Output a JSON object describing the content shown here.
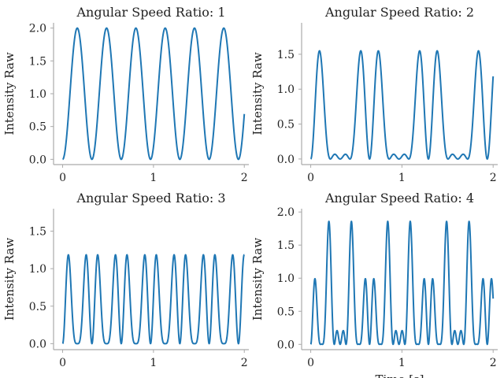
{
  "chart_data": [
    {
      "type": "line",
      "title": "Angular Speed Ratio: 1",
      "ylabel": "Intensity Raw",
      "xlabel": "",
      "ratio": 1,
      "xlim": [
        -0.1,
        2.05
      ],
      "ylim": [
        -0.08,
        2.08
      ],
      "xticks": [
        0,
        1,
        2
      ],
      "yticks": [
        0.0,
        0.5,
        1.0,
        1.5,
        2.0
      ],
      "ytick_labels": [
        "0.0",
        "0.5",
        "1.0",
        "1.5",
        "2.0"
      ],
      "series": [
        {
          "color": "#1f77b4"
        }
      ]
    },
    {
      "type": "line",
      "title": "Angular Speed Ratio: 2",
      "ylabel": "Intensity Raw",
      "xlabel": "",
      "ratio": 2,
      "xlim": [
        -0.1,
        2.05
      ],
      "ylim": [
        -0.08,
        1.95
      ],
      "xticks": [
        0,
        1,
        2
      ],
      "yticks": [
        0.0,
        0.5,
        1.0,
        1.5
      ],
      "ytick_labels": [
        "0.0",
        "0.5",
        "1.0",
        "1.5"
      ],
      "series": [
        {
          "color": "#1f77b4"
        }
      ]
    },
    {
      "type": "line",
      "title": "Angular Speed Ratio: 3",
      "ylabel": "Intensity Raw",
      "xlabel": "",
      "ratio": 3,
      "xlim": [
        -0.1,
        2.05
      ],
      "ylim": [
        -0.08,
        1.8
      ],
      "xticks": [
        0,
        1,
        2
      ],
      "yticks": [
        0.0,
        0.5,
        1.0,
        1.5
      ],
      "ytick_labels": [
        "0.0",
        "0.5",
        "1.0",
        "1.5"
      ],
      "series": [
        {
          "color": "#1f77b4"
        }
      ]
    },
    {
      "type": "line",
      "title": "Angular Speed Ratio: 4",
      "ylabel": "Intensity Raw",
      "xlabel": "Time [s]",
      "ratio": 4,
      "xlim": [
        -0.1,
        2.05
      ],
      "ylim": [
        -0.08,
        2.05
      ],
      "xticks": [
        0,
        1,
        2
      ],
      "yticks": [
        0.0,
        0.5,
        1.0,
        1.5,
        2.0
      ],
      "ytick_labels": [
        "0.0",
        "0.5",
        "1.0",
        "1.5",
        "2.0"
      ],
      "series": [
        {
          "color": "#1f77b4"
        }
      ]
    }
  ]
}
